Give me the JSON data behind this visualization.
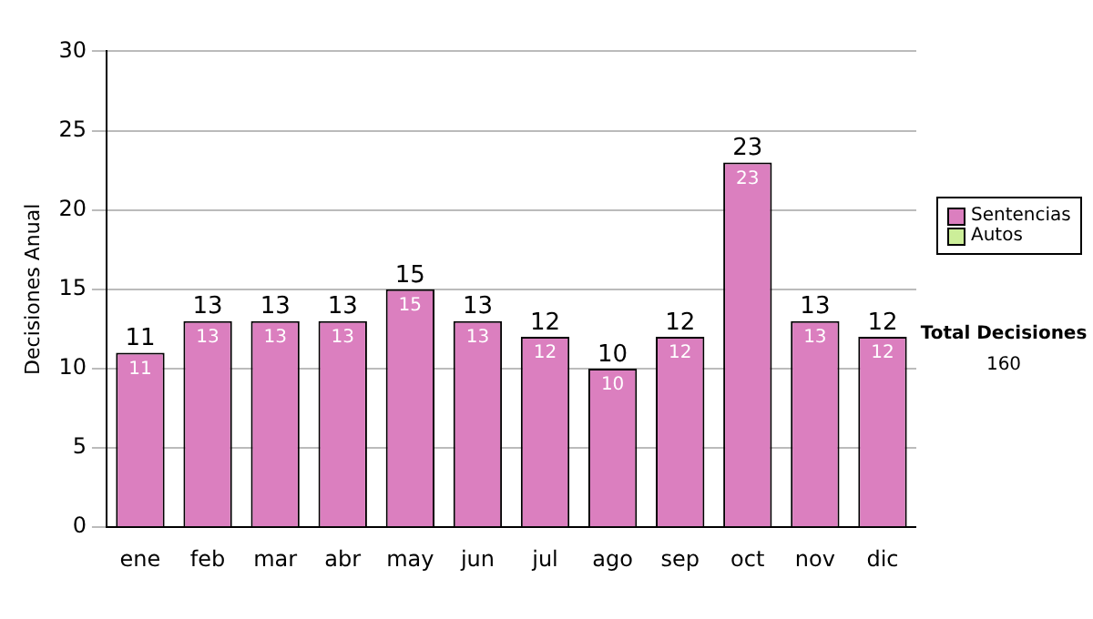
{
  "chart_data": {
    "type": "bar",
    "ylabel": "Decisiones Anual",
    "categories": [
      "ene",
      "feb",
      "mar",
      "abr",
      "may",
      "jun",
      "jul",
      "ago",
      "sep",
      "oct",
      "nov",
      "dic"
    ],
    "series": [
      {
        "name": "Sentencias",
        "color": "#db7fbf",
        "values": [
          11,
          13,
          13,
          13,
          15,
          13,
          12,
          10,
          12,
          23,
          13,
          12
        ],
        "value_labels": [
          "11",
          "13",
          "13",
          "13",
          "15",
          "13",
          "12",
          "10",
          "12",
          "23",
          "13",
          "12"
        ]
      },
      {
        "name": "Autos",
        "color": "#ccee99",
        "values": [
          0,
          0,
          0,
          0,
          0,
          0,
          0,
          0,
          0,
          0,
          0,
          0
        ],
        "value_labels": [
          null,
          null,
          null,
          null,
          null,
          null,
          null,
          null,
          null,
          null,
          null,
          null
        ]
      }
    ],
    "stacked": true,
    "totals": [
      "11",
      "13",
      "13",
      "13",
      "15",
      "13",
      "12",
      "10",
      "12",
      "23",
      "13",
      "12"
    ],
    "ylim": [
      0,
      30
    ],
    "yticks": [
      0,
      5,
      10,
      15,
      20,
      25,
      30
    ],
    "grid": "y",
    "legend": "right",
    "annotations": [
      "Total Decisiones",
      "160"
    ]
  }
}
